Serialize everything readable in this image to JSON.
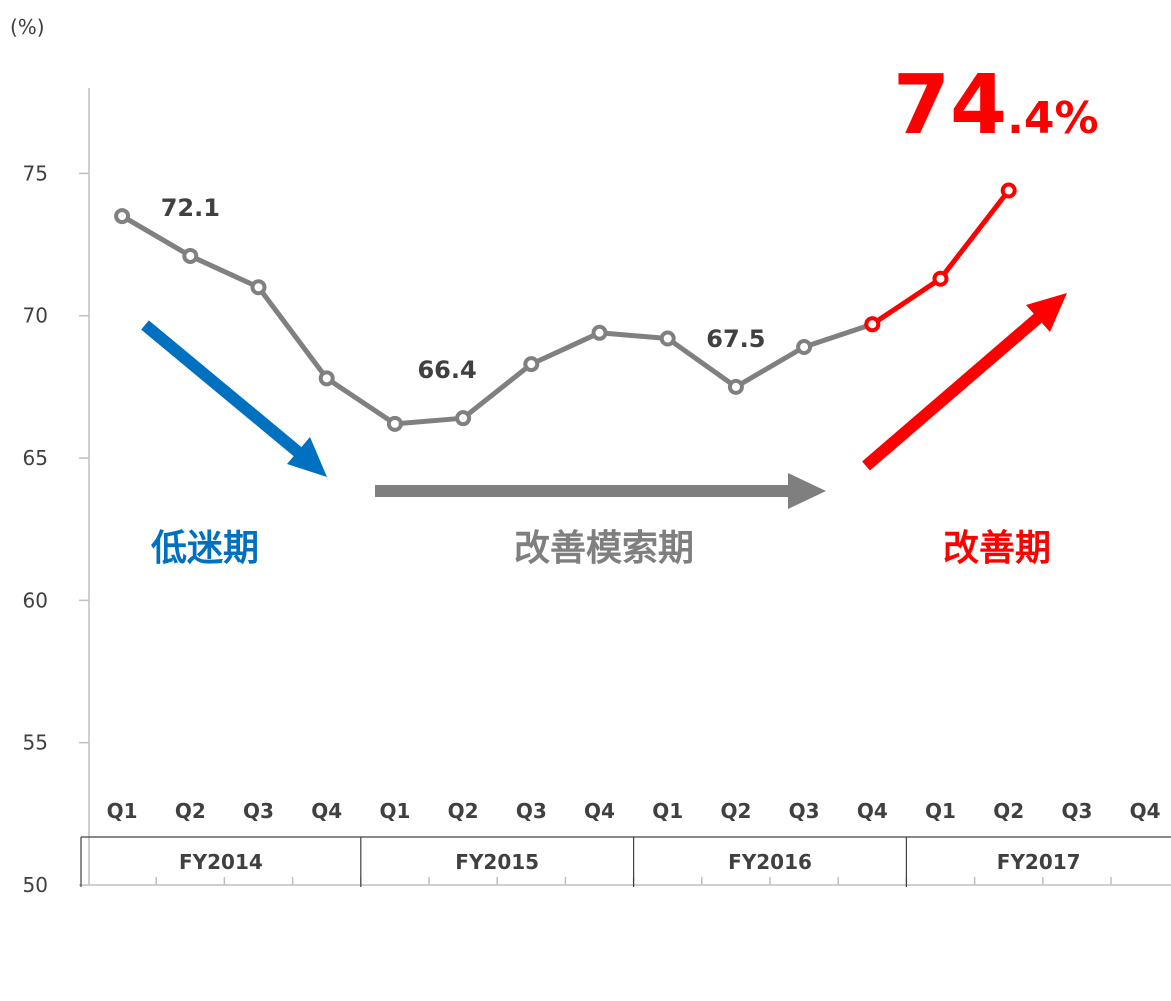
{
  "chart_data": {
    "type": "line",
    "y_label": "(%)",
    "categories": [
      "Q1",
      "Q2",
      "Q3",
      "Q4",
      "Q1",
      "Q2",
      "Q3",
      "Q4",
      "Q1",
      "Q2",
      "Q3",
      "Q4",
      "Q1",
      "Q2",
      "Q3",
      "Q4"
    ],
    "groups": [
      "FY2014",
      "FY2015",
      "FY2016",
      "FY2017"
    ],
    "series": [
      {
        "color": "#808080",
        "values": [
          73.5,
          72.1,
          71.0,
          67.8,
          66.2,
          66.4,
          68.3,
          69.4,
          69.2,
          67.5,
          68.9,
          69.7,
          null,
          null,
          null,
          null
        ],
        "value_labels": [
          null,
          "72.1",
          null,
          null,
          null,
          "66.4",
          null,
          null,
          null,
          "67.5",
          null,
          null,
          null,
          null,
          null,
          null
        ]
      },
      {
        "color": "#ff0000",
        "values": [
          null,
          null,
          null,
          null,
          null,
          null,
          null,
          null,
          null,
          null,
          null,
          69.7,
          71.3,
          74.4,
          null,
          null
        ],
        "value_labels": [
          null,
          null,
          null,
          null,
          null,
          null,
          null,
          null,
          null,
          null,
          null,
          null,
          null,
          "74.4%",
          null,
          null
        ]
      }
    ],
    "ylim": [
      50,
      78
    ],
    "yticks": [
      50,
      55,
      60,
      65,
      70,
      75
    ],
    "annotations": [
      {
        "text": "低迷期",
        "color": "#0070c0"
      },
      {
        "text": "改善模索期",
        "color": "#7f7f7f"
      },
      {
        "text": "改善期",
        "color": "#ff0000"
      }
    ]
  }
}
